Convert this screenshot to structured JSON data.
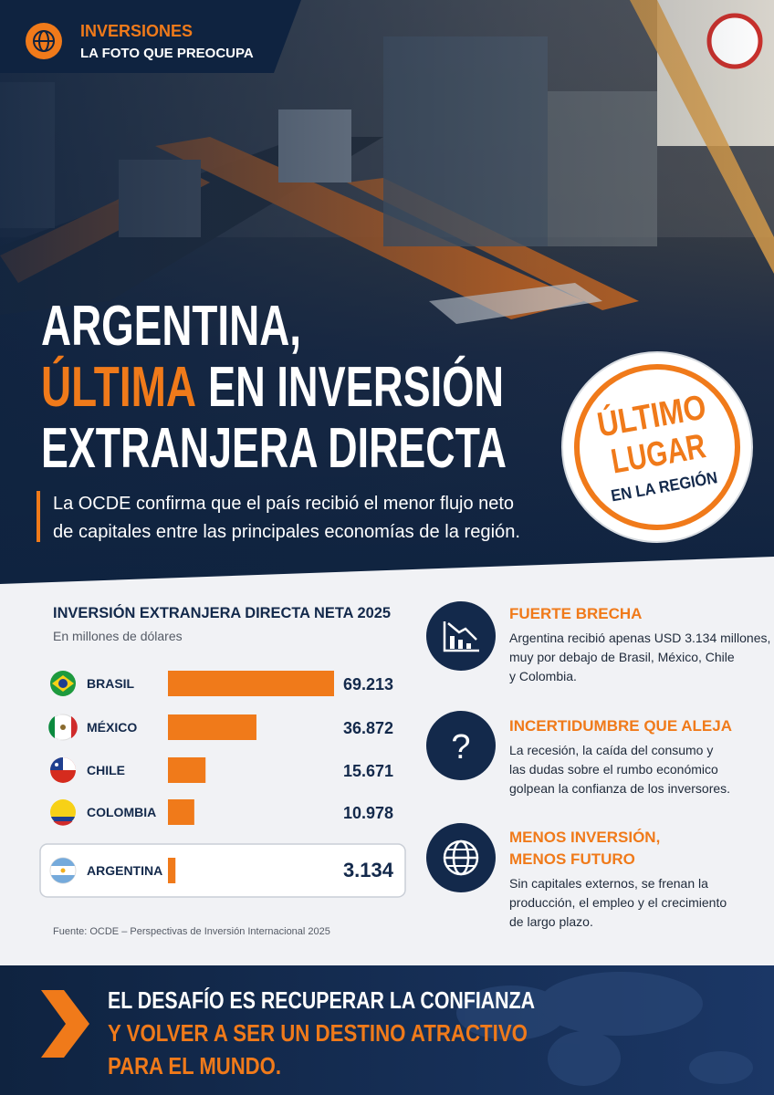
{
  "header": {
    "section": "INVERSIONES",
    "kicker": "LA FOTO QUE PREOCUPA"
  },
  "headline": {
    "line1": "ARGENTINA,",
    "line2_highlight": "ÚLTIMA",
    "line2_rest": "EN INVERSIÓN",
    "line3": "EXTRANJERA DIRECTA"
  },
  "subtitle": [
    "La OCDE confirma que el país recibió el menor flujo neto",
    "de capitales entre las principales economías de la región."
  ],
  "badge": {
    "line1": "ÚLTIMO",
    "line2": "LUGAR",
    "line3": "EN LA REGIÓN"
  },
  "chart_data": {
    "type": "bar",
    "orientation": "horizontal",
    "title": "INVERSIÓN EXTRANJERA DIRECTA NETA 2025",
    "subtitle": "En millones de dólares",
    "categories": [
      "BRASIL",
      "MÉXICO",
      "CHILE",
      "COLOMBIA",
      "ARGENTINA"
    ],
    "values": [
      69213,
      36872,
      15671,
      10978,
      3134
    ],
    "value_labels": [
      "69.213",
      "36.872",
      "15.671",
      "10.978",
      "3.134"
    ],
    "color": "#f07a1a"
  },
  "source": "Fuente: OCDE – Perspectivas de Inversión Internacional 2025",
  "features": [
    {
      "title": [
        "FUERTE BRECHA"
      ],
      "body": [
        "Argentina recibió apenas USD 3.134 millones,",
        "muy por debajo de Brasil, México, Chile",
        "y Colombia."
      ]
    },
    {
      "title": [
        "INCERTIDUMBRE QUE ALEJA"
      ],
      "body": [
        "La recesión, la caída del consumo y",
        "las dudas sobre el rumbo económico",
        "golpean la confianza de los inversores."
      ]
    },
    {
      "title": [
        "MENOS INVERSIÓN,",
        "MENOS FUTURO"
      ],
      "body": [
        "Sin capitales externos, se frenan la",
        "producción, el empleo y el crecimiento",
        "de largo plazo."
      ]
    }
  ],
  "footer": {
    "lines": [
      "EL DESAFÍO ES RECUPERAR LA CONFIANZA",
      "Y VOLVER A SER UN DESTINO ATRACTIVO",
      "PARA EL MUNDO."
    ]
  }
}
